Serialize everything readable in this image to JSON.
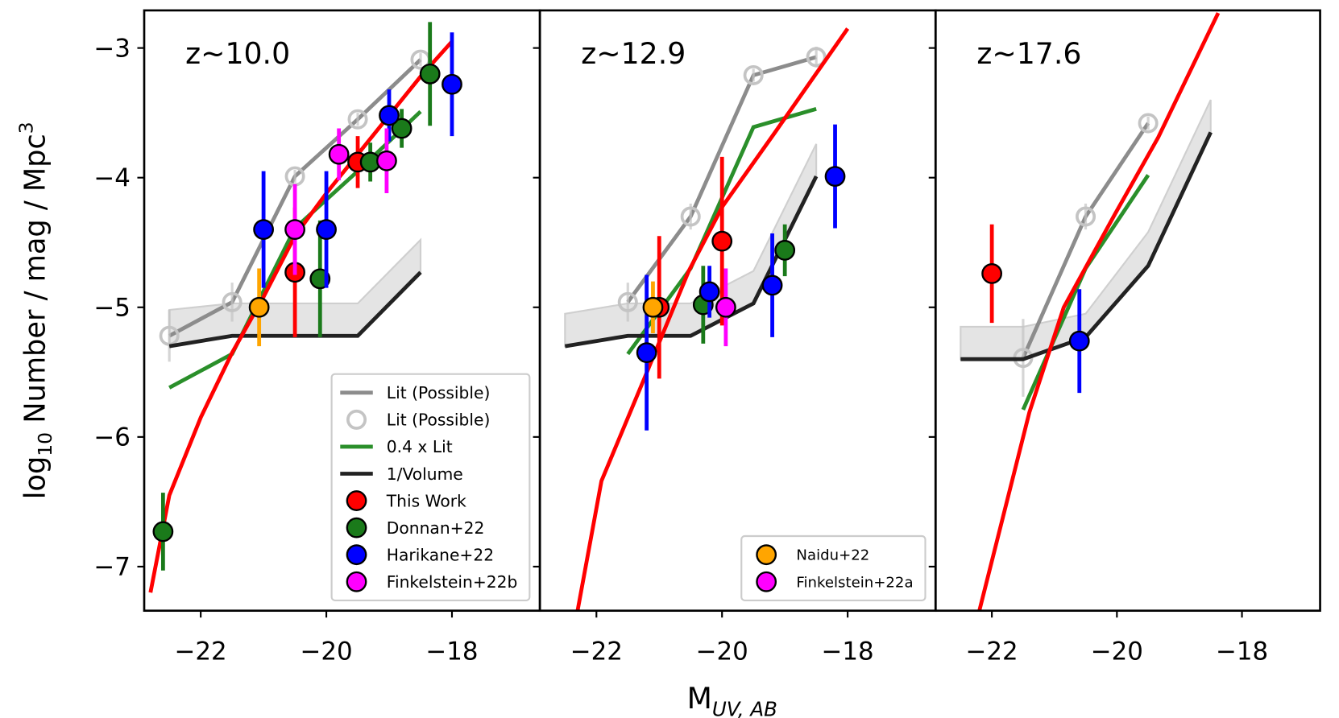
{
  "xlabel": {
    "main": "M",
    "sub": "UV, AB"
  },
  "ylabel": {
    "pre": "log",
    "sub": "10",
    "main": " Number / mag / Mpc",
    "sup": "3"
  },
  "chart_data": [
    {
      "type": "line",
      "title": "z~10.0",
      "xlim": [
        -22.9,
        -16.6
      ],
      "ylim": [
        -7.34,
        -2.71
      ],
      "xticks": [
        {
          "value": -22,
          "label": "−22"
        },
        {
          "value": -20,
          "label": "−20"
        },
        {
          "value": -18,
          "label": "−18"
        }
      ],
      "yticks": [
        {
          "value": -7,
          "label": "−7"
        },
        {
          "value": -6,
          "label": "−6"
        },
        {
          "value": -5,
          "label": "−5"
        },
        {
          "value": -4,
          "label": "−4"
        },
        {
          "value": -3,
          "label": "−3"
        }
      ],
      "legend": "lower right",
      "series": [
        {
          "kind": "band",
          "color": "#e4e4e4",
          "x": [
            -22.5,
            -21.5,
            -19.5,
            -18.5
          ],
          "y": [
            -5.3,
            -5.22,
            -5.22,
            -4.73
          ],
          "y2": [
            -5.02,
            -4.97,
            -4.97,
            -4.48
          ]
        },
        {
          "kind": "line",
          "name": "Lit (Possible)",
          "color": "#8c8c8c",
          "x": [
            -22.5,
            -21.5,
            -20.5,
            -19.5,
            -18.5
          ],
          "y": [
            -5.22,
            -4.96,
            -3.99,
            -3.55,
            -3.09
          ]
        },
        {
          "kind": "open",
          "name": "Lit (Possible)",
          "color": "#c4c4c4",
          "x": [
            -22.5,
            -21.5,
            -20.5,
            -19.5,
            -18.5
          ],
          "y": [
            -5.22,
            -4.96,
            -3.99,
            -3.55,
            -3.09
          ],
          "err": [
            0.2,
            0.15,
            0.05,
            0.05,
            0.05
          ]
        },
        {
          "kind": "line",
          "name": "0.4 x Lit",
          "color": "#2a8f2a",
          "x": [
            -22.5,
            -21.5,
            -20.5,
            -19.5,
            -18.5
          ],
          "y": [
            -5.62,
            -5.36,
            -4.39,
            -3.95,
            -3.49
          ]
        },
        {
          "kind": "line",
          "name": "1/Volume",
          "color": "#222222",
          "x": [
            -22.5,
            -21.5,
            -19.5,
            -18.5
          ],
          "y": [
            -5.3,
            -5.22,
            -5.22,
            -4.73
          ]
        },
        {
          "kind": "line",
          "color": "#ff0000",
          "x": [
            -22.8,
            -22.5,
            -22,
            -21.5,
            -21,
            -20.5,
            -20,
            -19.5,
            -19,
            -18.5,
            -18
          ],
          "y": [
            -7.2,
            -6.45,
            -5.85,
            -5.35,
            -4.92,
            -4.45,
            -4.12,
            -3.82,
            -3.52,
            -3.22,
            -2.95
          ]
        },
        {
          "kind": "points",
          "name": "This Work",
          "color": "#ff0000",
          "x": [
            -20.5,
            -19.5
          ],
          "y": [
            -4.73,
            -3.88
          ],
          "err": [
            0.5,
            0.2
          ]
        },
        {
          "kind": "points",
          "name": "Donnan+22",
          "color": "#1a7a1a",
          "x": [
            -22.6,
            -20.1,
            -19.3,
            -18.8,
            -18.35
          ],
          "y": [
            -6.73,
            -4.78,
            -3.88,
            -3.62,
            -3.2
          ],
          "err": [
            0.3,
            0.45,
            0.15,
            0.15,
            0.4
          ]
        },
        {
          "kind": "points",
          "name": "Harikane+22",
          "color": "#0000ff",
          "x": [
            -21.0,
            -20.0,
            -19.0,
            -18.0
          ],
          "y": [
            -4.4,
            -4.4,
            -3.52,
            -3.28
          ],
          "err": [
            0.45,
            0.45,
            0.2,
            0.4
          ]
        },
        {
          "kind": "points",
          "name": "Finkelstein+22b",
          "color": "#ff00ff",
          "x": [
            -20.5,
            -19.8,
            -19.04
          ],
          "y": [
            -4.4,
            -3.82,
            -3.87
          ],
          "err": [
            0.35,
            0.2,
            0.25
          ]
        },
        {
          "kind": "points",
          "color": "#ffa500",
          "x": [
            -21.07
          ],
          "y": [
            -5.0
          ],
          "err": [
            0.3
          ]
        }
      ]
    },
    {
      "type": "line",
      "title": "z~12.9",
      "xlim": [
        -22.9,
        -16.6
      ],
      "ylim": [
        -7.34,
        -2.71
      ],
      "xticks": [
        {
          "value": -22,
          "label": "−22"
        },
        {
          "value": -20,
          "label": "−20"
        },
        {
          "value": -18,
          "label": "−18"
        }
      ],
      "yticks": [
        -7,
        -6,
        -5,
        -4,
        -3
      ],
      "legend": "lower right",
      "series": [
        {
          "kind": "band",
          "color": "#e4e4e4",
          "x": [
            -22.5,
            -21.5,
            -20.5,
            -19.5,
            -18.5
          ],
          "y": [
            -5.3,
            -5.22,
            -5.22,
            -4.97,
            -3.99
          ],
          "y2": [
            -5.05,
            -4.97,
            -4.97,
            -4.72,
            -3.74
          ]
        },
        {
          "kind": "line",
          "color": "#8c8c8c",
          "x": [
            -21.5,
            -20.5,
            -19.5,
            -18.5
          ],
          "y": [
            -4.96,
            -4.3,
            -3.21,
            -3.07
          ]
        },
        {
          "kind": "open",
          "color": "#c4c4c4",
          "x": [
            -21.5,
            -20.5,
            -19.5,
            -18.5
          ],
          "y": [
            -4.96,
            -4.3,
            -3.21,
            -3.07
          ],
          "err": [
            0.15,
            0.1,
            0.05,
            0.08
          ]
        },
        {
          "kind": "line",
          "color": "#2a8f2a",
          "x": [
            -21.5,
            -20.5,
            -19.5,
            -18.5
          ],
          "y": [
            -5.36,
            -4.7,
            -3.61,
            -3.47
          ]
        },
        {
          "kind": "line",
          "color": "#222222",
          "x": [
            -22.5,
            -21.5,
            -20.5,
            -19.5,
            -18.5
          ],
          "y": [
            -5.3,
            -5.22,
            -5.22,
            -4.97,
            -3.99
          ]
        },
        {
          "kind": "line",
          "color": "#ff0000",
          "x": [
            -22.3,
            -21.92,
            -21.23,
            -20.53,
            -19.99,
            -19.17,
            -18.0
          ],
          "y": [
            -7.34,
            -6.34,
            -5.54,
            -4.72,
            -4.22,
            -3.66,
            -2.85
          ]
        },
        {
          "kind": "points",
          "color": "#ff0000",
          "x": [
            -21.0,
            -20.0
          ],
          "y": [
            -5.0,
            -4.49
          ],
          "err": [
            0.55,
            0.65
          ]
        },
        {
          "kind": "points",
          "color": "#1a7a1a",
          "x": [
            -20.3,
            -19.0
          ],
          "y": [
            -4.98,
            -4.56
          ],
          "err": [
            0.3,
            0.2
          ]
        },
        {
          "kind": "points",
          "color": "#0000ff",
          "x": [
            -21.2,
            -20.2,
            -19.2,
            -18.2
          ],
          "y": [
            -5.35,
            -4.88,
            -4.83,
            -3.99
          ],
          "err": [
            0.6,
            0.2,
            0.4,
            0.4
          ]
        },
        {
          "kind": "points",
          "name": "Naidu+22",
          "color": "#ffa500",
          "x": [
            -21.1
          ],
          "y": [
            -5.0
          ],
          "err": [
            0.2
          ]
        },
        {
          "kind": "points",
          "name": "Finkelstein+22a",
          "color": "#ff00ff",
          "x": [
            -19.94
          ],
          "y": [
            -5.0
          ],
          "err": [
            0.3
          ]
        }
      ]
    },
    {
      "type": "line",
      "title": "z~17.6",
      "xlim": [
        -22.9,
        -16.75
      ],
      "ylim": [
        -7.34,
        -2.71
      ],
      "xticks": [
        {
          "value": -22,
          "label": "−22"
        },
        {
          "value": -20,
          "label": "−20"
        },
        {
          "value": -18,
          "label": "−18"
        }
      ],
      "yticks": [
        -7,
        -6,
        -5,
        -4,
        -3
      ],
      "series": [
        {
          "kind": "band",
          "color": "#e4e4e4",
          "x": [
            -22.5,
            -21.5,
            -20.5,
            -19.5,
            -18.5
          ],
          "y": [
            -5.4,
            -5.4,
            -5.23,
            -4.68,
            -3.65
          ],
          "y2": [
            -5.15,
            -5.15,
            -5.05,
            -4.42,
            -3.4
          ]
        },
        {
          "kind": "line",
          "color": "#8c8c8c",
          "x": [
            -21.5,
            -20.5,
            -19.5
          ],
          "y": [
            -5.39,
            -4.3,
            -3.58
          ]
        },
        {
          "kind": "open",
          "color": "#c4c4c4",
          "x": [
            -21.5,
            -20.5,
            -19.5
          ],
          "y": [
            -5.39,
            -4.3,
            -3.58
          ],
          "err": [
            0.3,
            0.1,
            0.05
          ]
        },
        {
          "kind": "line",
          "color": "#2a8f2a",
          "x": [
            -21.5,
            -20.5,
            -19.5
          ],
          "y": [
            -5.79,
            -4.7,
            -3.98
          ]
        },
        {
          "kind": "line",
          "color": "#222222",
          "x": [
            -22.5,
            -21.5,
            -20.5,
            -19.5,
            -18.5
          ],
          "y": [
            -5.4,
            -5.4,
            -5.23,
            -4.68,
            -3.65
          ]
        },
        {
          "kind": "line",
          "color": "#ff0000",
          "x": [
            -22.2,
            -21.4,
            -20.85,
            -20.03,
            -19.34,
            -18.38
          ],
          "y": [
            -7.34,
            -5.81,
            -5.0,
            -4.28,
            -3.69,
            -2.73
          ]
        },
        {
          "kind": "points",
          "color": "#ff0000",
          "x": [
            -22.0
          ],
          "y": [
            -4.74
          ],
          "err": [
            0.38
          ]
        },
        {
          "kind": "points",
          "color": "#0000ff",
          "x": [
            -20.6
          ],
          "y": [
            -5.26
          ],
          "err": [
            0.4
          ]
        }
      ]
    }
  ]
}
